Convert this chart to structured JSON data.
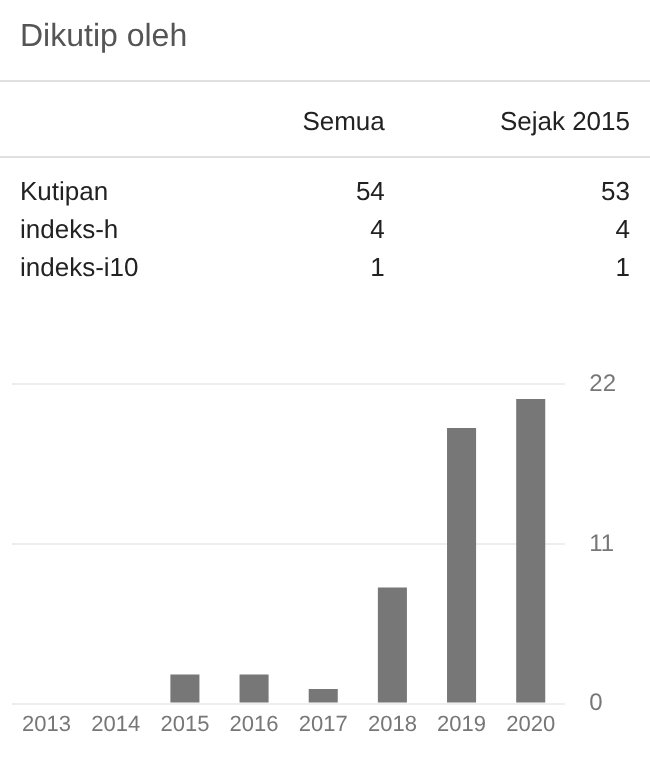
{
  "chart_data": [
    {
      "type": "other",
      "title": "Dikutip oleh",
      "categories": [
        "Kutipan",
        "indeks-h",
        "indeks-i10"
      ],
      "series": [
        {
          "name": "Semua",
          "values": [
            54,
            4,
            1
          ]
        },
        {
          "name": "Sejak 2015",
          "values": [
            53,
            4,
            1
          ]
        }
      ],
      "data_labels": true
    },
    {
      "type": "bar",
      "categories": [
        "2013",
        "2014",
        "2015",
        "2016",
        "2017",
        "2018",
        "2019",
        "2020"
      ],
      "values": [
        0,
        0,
        2,
        2,
        1,
        8,
        19,
        21
      ],
      "color": "#777777",
      "ylim": [
        0,
        22
      ],
      "yticks": [
        0,
        11,
        22
      ],
      "grid": "y"
    }
  ]
}
